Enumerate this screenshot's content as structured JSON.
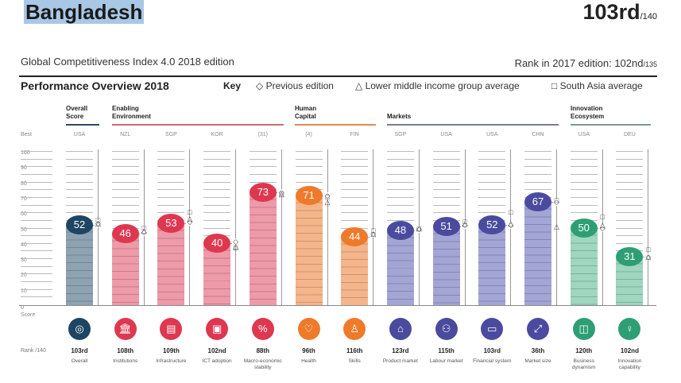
{
  "header": {
    "country": "Bangladesh",
    "rank": "103rd",
    "rank_of": "/140",
    "subtitle": "Global Competitiveness Index 4.0 2018 edition",
    "rank_2017_label": "Rank in 2017 edition: 102nd",
    "rank_2017_of": "/135",
    "section_title": "Performance Overview 2018",
    "key_label": "Key",
    "legend": [
      {
        "symbol": "◇",
        "label": "Previous edition"
      },
      {
        "symbol": "△",
        "label": "Lower middle income group average"
      },
      {
        "symbol": "□",
        "label": "South Asia average"
      }
    ]
  },
  "axis": {
    "best_label": "Best",
    "score_label": "Score",
    "rank_label": "Rank /140",
    "ticks": [
      "100",
      "90",
      "80",
      "70",
      "60",
      "50",
      "40",
      "30",
      "20",
      "10",
      "0"
    ]
  },
  "groups": [
    {
      "label": "Overall Score",
      "color": "#2b4a63"
    },
    {
      "label": "Enabling Environment",
      "color": "#c2706f"
    },
    {
      "label": "Human Capital",
      "color": "#e08a50"
    },
    {
      "label": "Markets",
      "color": "#777c99"
    },
    {
      "label": "Innovation Ecosystem",
      "color": "#7a9a94"
    }
  ],
  "chart_data": {
    "type": "bar",
    "title": "Performance Overview 2018",
    "ylabel": "Score",
    "ylim": [
      0,
      100
    ],
    "categories": [
      "Overall",
      "Institutions",
      "Infrastructure",
      "ICT adoption",
      "Macro-economic stability",
      "Health",
      "Skills",
      "Product market",
      "Labour market",
      "Financial system",
      "Market size",
      "Business dynamism",
      "Innovation capability"
    ],
    "best_performer": [
      "USA",
      "NZL",
      "SGP",
      "KOR",
      "(31)",
      "(4)",
      "FIN",
      "SGP",
      "USA",
      "USA",
      "CHN",
      "USA",
      "DEU"
    ],
    "series": [
      {
        "name": "Score 2018",
        "values": [
          52,
          46,
          53,
          40,
          73,
          71,
          44,
          48,
          51,
          52,
          67,
          50,
          31
        ]
      },
      {
        "name": "Previous edition",
        "values": [
          53,
          47,
          54,
          41,
          73,
          71,
          46,
          49,
          52,
          52,
          67,
          50,
          31
        ]
      },
      {
        "name": "Lower middle income group average",
        "values": [
          53,
          48,
          56,
          38,
          72,
          67,
          46,
          50,
          53,
          53,
          51,
          52,
          31
        ]
      },
      {
        "name": "South Asia average",
        "values": [
          55,
          50,
          60,
          37,
          72,
          70,
          48,
          49,
          54,
          60,
          68,
          57,
          36
        ]
      }
    ],
    "ranks": [
      "103rd",
      "108th",
      "109th",
      "102nd",
      "88th",
      "96th",
      "116th",
      "123rd",
      "115th",
      "103rd",
      "36th",
      "120th",
      "102nd"
    ]
  },
  "pillars": [
    {
      "label": "Overall",
      "best": "USA",
      "score": "52",
      "rank": "103rd",
      "icon": "◎",
      "icon_name": "target-icon",
      "bar": "#8ea3b1",
      "dark": "#1f4563"
    },
    {
      "label": "Institutions",
      "best": "NZL",
      "score": "46",
      "rank": "108th",
      "icon": "🏛",
      "icon_name": "institution-icon",
      "bar": "#ee9aa8",
      "dark": "#de3750"
    },
    {
      "label": "Infrastructure",
      "best": "SGP",
      "score": "53",
      "rank": "109th",
      "icon": "▤",
      "icon_name": "train-icon",
      "bar": "#ee9aa8",
      "dark": "#de3750"
    },
    {
      "label": "ICT adoption",
      "best": "KOR",
      "score": "40",
      "rank": "102nd",
      "icon": "▣",
      "icon_name": "chip-icon",
      "bar": "#ee9aa8",
      "dark": "#de3750"
    },
    {
      "label": "Macro-economic stability",
      "best": "(31)",
      "score": "73",
      "rank": "88th",
      "icon": "%",
      "icon_name": "percent-icon",
      "bar": "#ee9aa8",
      "dark": "#de3750"
    },
    {
      "label": "Health",
      "best": "(4)",
      "score": "71",
      "rank": "96th",
      "icon": "♡",
      "icon_name": "heart-icon",
      "bar": "#f5b58a",
      "dark": "#ee7a2a"
    },
    {
      "label": "Skills",
      "best": "FIN",
      "score": "44",
      "rank": "116th",
      "icon": "♙",
      "icon_name": "graduate-icon",
      "bar": "#f5b58a",
      "dark": "#ee7a2a"
    },
    {
      "label": "Product market",
      "best": "SGP",
      "score": "48",
      "rank": "123rd",
      "icon": "⌂",
      "icon_name": "tag-icon",
      "bar": "#a3a5d4",
      "dark": "#4a4b9e"
    },
    {
      "label": "Labour market",
      "best": "USA",
      "score": "51",
      "rank": "115th",
      "icon": "⚇",
      "icon_name": "people-icon",
      "bar": "#a3a5d4",
      "dark": "#4a4b9e"
    },
    {
      "label": "Financial system",
      "best": "USA",
      "score": "52",
      "rank": "103rd",
      "icon": "▭",
      "icon_name": "credit-card-icon",
      "bar": "#a3a5d4",
      "dark": "#4a4b9e"
    },
    {
      "label": "Market size",
      "best": "CHN",
      "score": "67",
      "rank": "36th",
      "icon": "⤢",
      "icon_name": "expand-icon",
      "bar": "#a3a5d4",
      "dark": "#4a4b9e"
    },
    {
      "label": "Business dynamism",
      "best": "USA",
      "score": "50",
      "rank": "120th",
      "icon": "◫",
      "icon_name": "building-icon",
      "bar": "#9ed6c0",
      "dark": "#2e9e75"
    },
    {
      "label": "Innovation capability",
      "best": "DEU",
      "score": "31",
      "rank": "102nd",
      "icon": "♀",
      "icon_name": "lightbulb-icon",
      "bar": "#9ed6c0",
      "dark": "#2e9e75"
    }
  ]
}
